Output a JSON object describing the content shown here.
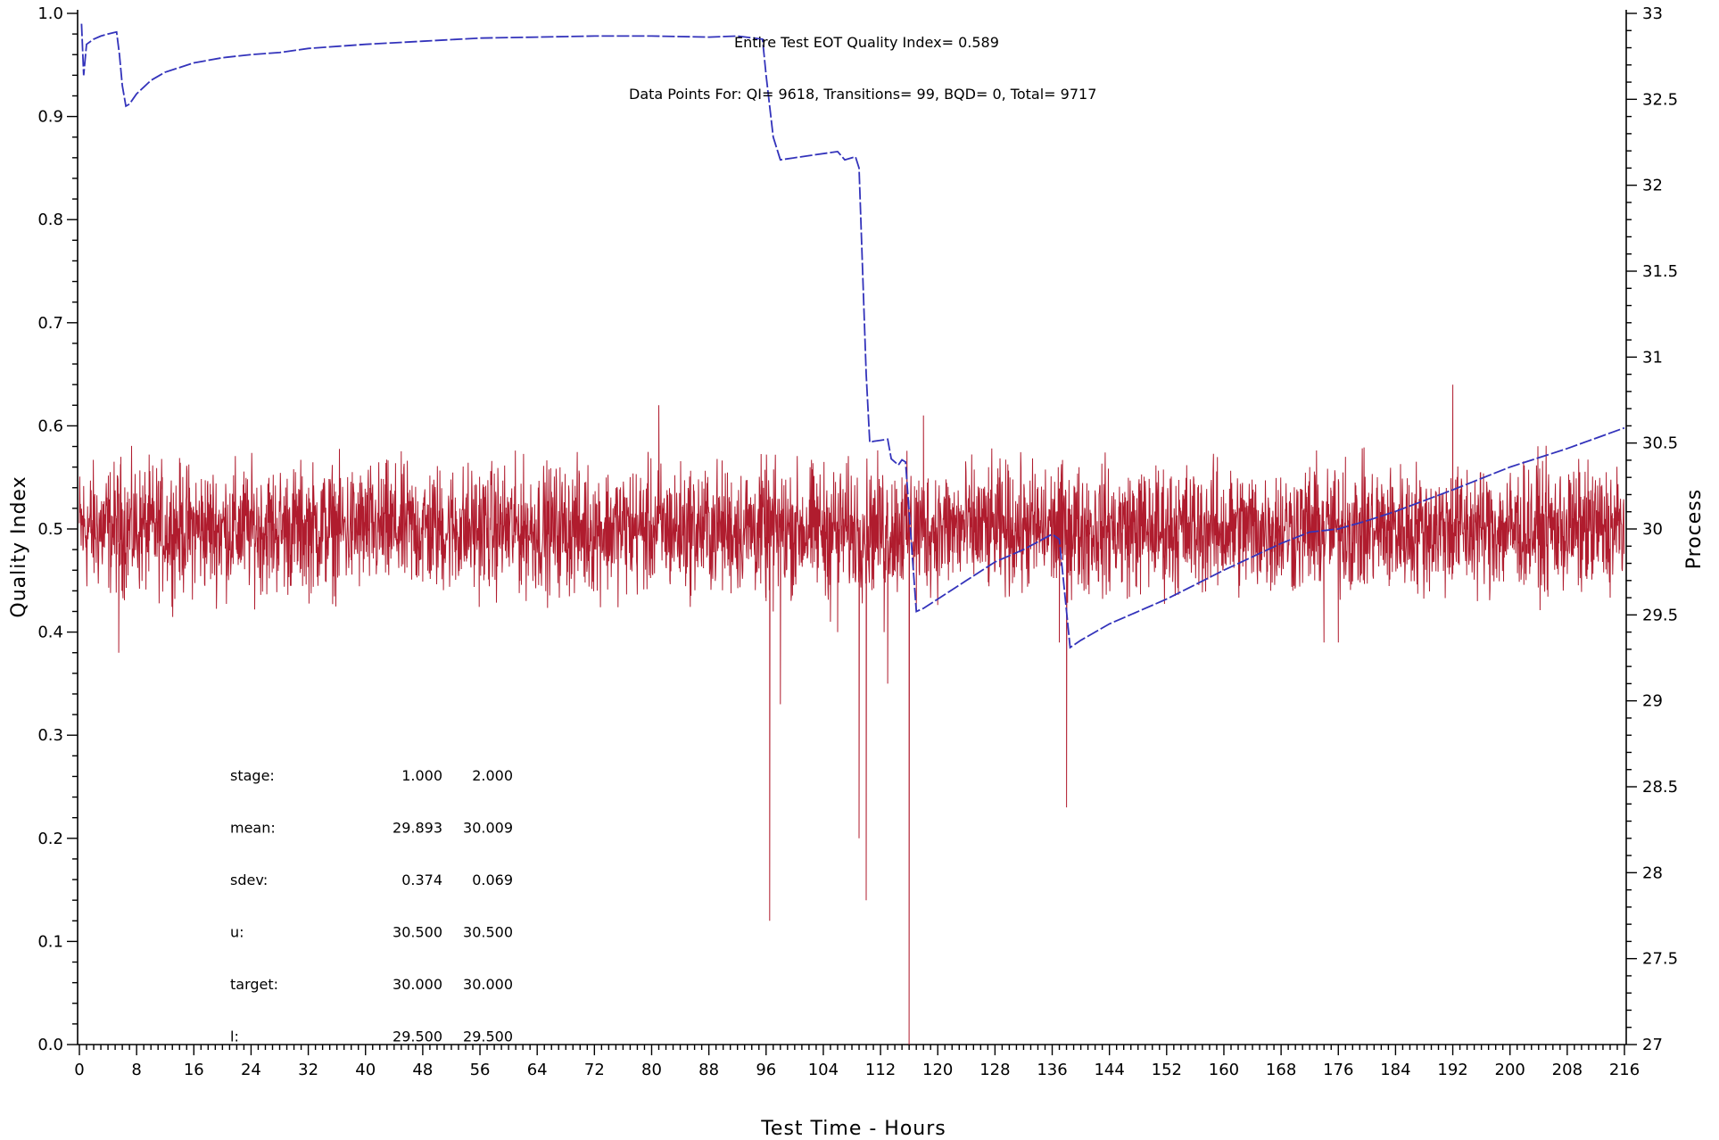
{
  "chart_data": {
    "type": "line",
    "title": "",
    "xlabel": "Test Time - Hours",
    "ylabel_left": "Quality Index",
    "ylabel_right": "Process",
    "xlim": [
      0,
      216
    ],
    "ylim_left": [
      0,
      1
    ],
    "ylim_right": [
      27,
      33
    ],
    "x_ticks": [
      "0",
      "8",
      "16",
      "24",
      "32",
      "40",
      "48",
      "56",
      "64",
      "72",
      "80",
      "88",
      "96",
      "104",
      "112",
      "120",
      "128",
      "136",
      "144",
      "152",
      "160",
      "168",
      "176",
      "184",
      "192",
      "200",
      "208",
      "216"
    ],
    "y_left_ticks": [
      "0.0",
      "0.1",
      "0.2",
      "0.3",
      "0.4",
      "0.5",
      "0.6",
      "0.7",
      "0.8",
      "0.9",
      "1.0"
    ],
    "y_right_ticks": [
      "27",
      "27.5",
      "28",
      "28.5",
      "29",
      "29.5",
      "30",
      "30.5",
      "31",
      "31.5",
      "32",
      "32.5",
      "33"
    ],
    "grid": false,
    "annotations": {
      "eot": "Entire Test EOT Quality Index=   0.589",
      "points": "Data Points For: QI=   9618, Transitions=     99, BQD=     0, Total=   9717"
    },
    "stats_table": [
      {
        "label": "stage:",
        "v1": "1.000",
        "v2": "2.000"
      },
      {
        "label": "mean:",
        "v1": "29.893",
        "v2": "30.009"
      },
      {
        "label": "sdev:",
        "v1": "0.374",
        "v2": "0.069"
      },
      {
        "label": "u:",
        "v1": "30.500",
        "v2": "30.500"
      },
      {
        "label": "target:",
        "v1": "30.000",
        "v2": "30.000"
      },
      {
        "label": "l:",
        "v1": "29.500",
        "v2": "29.500"
      }
    ],
    "series": [
      {
        "axis": "left",
        "color": "#3333bb",
        "style": "dashed",
        "points": [
          [
            0.3,
            0.99
          ],
          [
            0.6,
            0.94
          ],
          [
            1,
            0.97
          ],
          [
            2,
            0.975
          ],
          [
            3,
            0.978
          ],
          [
            4,
            0.98
          ],
          [
            5.2,
            0.982
          ],
          [
            5.6,
            0.96
          ],
          [
            6,
            0.93
          ],
          [
            6.5,
            0.91
          ],
          [
            7,
            0.912
          ],
          [
            8,
            0.922
          ],
          [
            10,
            0.935
          ],
          [
            12,
            0.943
          ],
          [
            16,
            0.952
          ],
          [
            20,
            0.957
          ],
          [
            24,
            0.96
          ],
          [
            28,
            0.962
          ],
          [
            32,
            0.966
          ],
          [
            40,
            0.97
          ],
          [
            48,
            0.973
          ],
          [
            56,
            0.976
          ],
          [
            64,
            0.977
          ],
          [
            72,
            0.978
          ],
          [
            80,
            0.978
          ],
          [
            88,
            0.977
          ],
          [
            92,
            0.978
          ],
          [
            95.5,
            0.975
          ],
          [
            96,
            0.94
          ],
          [
            97,
            0.88
          ],
          [
            98,
            0.858
          ],
          [
            102,
            0.862
          ],
          [
            106,
            0.866
          ],
          [
            107,
            0.858
          ],
          [
            108.5,
            0.861
          ],
          [
            109,
            0.85
          ],
          [
            109.5,
            0.75
          ],
          [
            110,
            0.65
          ],
          [
            110.5,
            0.584
          ],
          [
            111,
            0.585
          ],
          [
            112,
            0.586
          ],
          [
            113,
            0.587
          ],
          [
            113.5,
            0.568
          ],
          [
            114.5,
            0.562
          ],
          [
            115,
            0.567
          ],
          [
            115.5,
            0.565
          ],
          [
            117,
            0.42
          ],
          [
            118,
            0.423
          ],
          [
            120,
            0.432
          ],
          [
            124,
            0.45
          ],
          [
            128,
            0.468
          ],
          [
            132,
            0.48
          ],
          [
            136,
            0.495
          ],
          [
            137,
            0.49
          ],
          [
            138,
            0.42
          ],
          [
            138.5,
            0.385
          ],
          [
            140,
            0.392
          ],
          [
            144,
            0.408
          ],
          [
            152,
            0.432
          ],
          [
            160,
            0.46
          ],
          [
            168,
            0.486
          ],
          [
            172,
            0.497
          ],
          [
            176,
            0.5
          ],
          [
            180,
            0.508
          ],
          [
            184,
            0.517
          ],
          [
            192,
            0.538
          ],
          [
            200,
            0.56
          ],
          [
            208,
            0.578
          ],
          [
            216,
            0.598
          ]
        ]
      },
      {
        "axis": "left",
        "color": "#b01c2e",
        "style": "solid",
        "noise_center": 0.5,
        "noise_amplitude": 0.03,
        "spikes": [
          [
            5.5,
            0.38
          ],
          [
            5.8,
            0.57
          ],
          [
            81,
            0.62
          ],
          [
            96,
            0.43
          ],
          [
            96.5,
            0.12
          ],
          [
            97,
            0.42
          ],
          [
            98,
            0.33
          ],
          [
            105,
            0.41
          ],
          [
            106,
            0.4
          ],
          [
            109,
            0.2
          ],
          [
            110,
            0.14
          ],
          [
            111,
            0.53
          ],
          [
            112.5,
            0.4
          ],
          [
            113,
            0.35
          ],
          [
            115,
            0.55
          ],
          [
            116,
            0.0
          ],
          [
            117,
            0.42
          ],
          [
            118,
            0.61
          ],
          [
            137,
            0.39
          ],
          [
            138,
            0.23
          ],
          [
            172,
            0.56
          ],
          [
            174,
            0.39
          ],
          [
            175,
            0.53
          ],
          [
            176,
            0.39
          ],
          [
            177,
            0.57
          ],
          [
            192,
            0.64
          ]
        ]
      }
    ]
  }
}
